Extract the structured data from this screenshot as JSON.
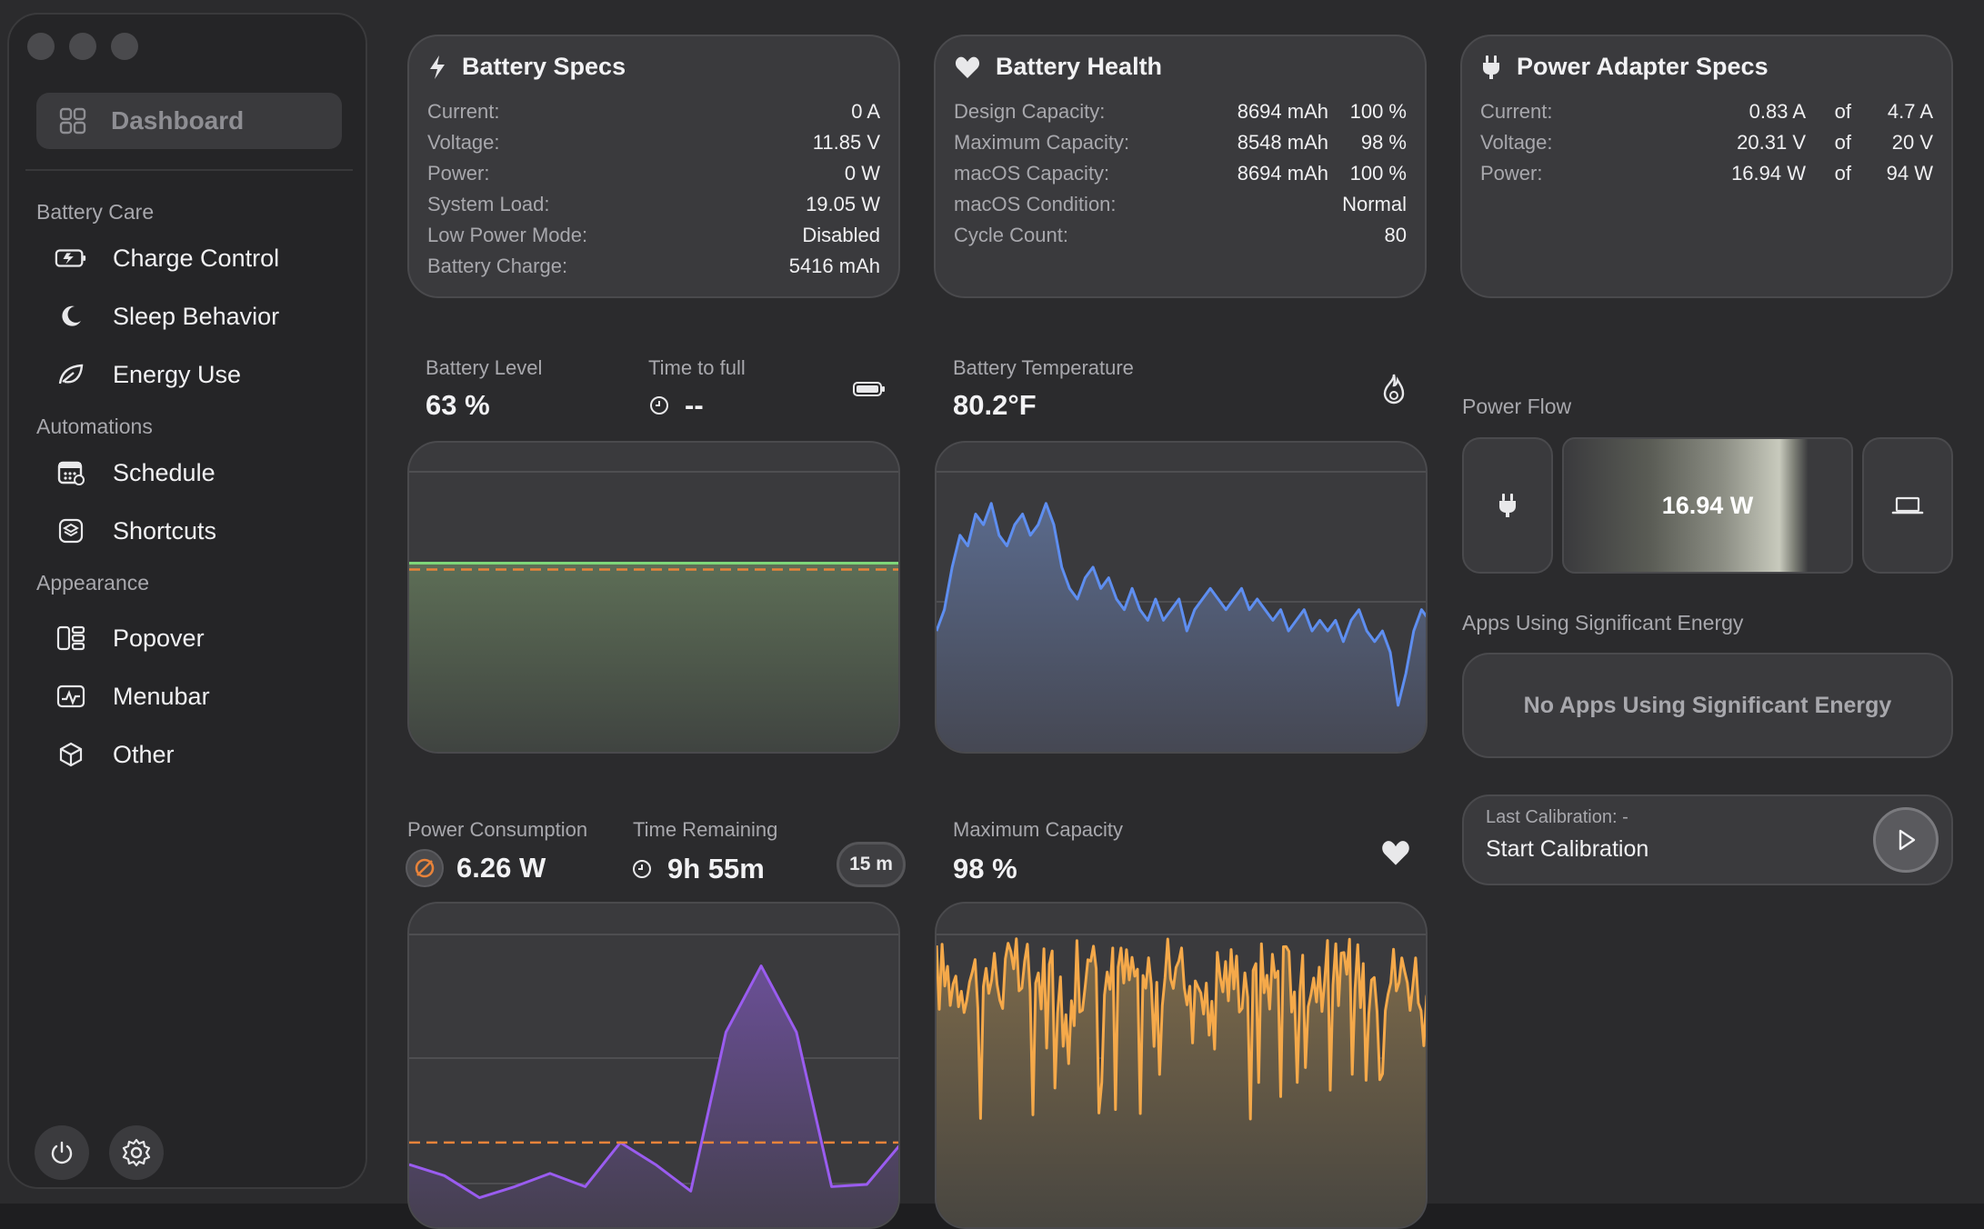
{
  "sidebar": {
    "dashboard_label": "Dashboard",
    "sections": [
      {
        "title": "Battery Care",
        "items": [
          {
            "label": "Charge Control",
            "icon": "battery-charge-icon"
          },
          {
            "label": "Sleep Behavior",
            "icon": "moon-icon"
          },
          {
            "label": "Energy Use",
            "icon": "leaf-icon"
          }
        ]
      },
      {
        "title": "Automations",
        "items": [
          {
            "label": "Schedule",
            "icon": "calendar-icon"
          },
          {
            "label": "Shortcuts",
            "icon": "shortcuts-icon"
          }
        ]
      },
      {
        "title": "Appearance",
        "items": [
          {
            "label": "Popover",
            "icon": "popover-icon"
          },
          {
            "label": "Menubar",
            "icon": "menubar-icon"
          },
          {
            "label": "Other",
            "icon": "cube-icon"
          }
        ]
      }
    ]
  },
  "battery_specs": {
    "title": "Battery Specs",
    "rows": [
      {
        "k": "Current:",
        "v": "0 A"
      },
      {
        "k": "Voltage:",
        "v": "11.85 V"
      },
      {
        "k": "Power:",
        "v": "0 W"
      },
      {
        "k": "System Load:",
        "v": "19.05 W"
      },
      {
        "k": "Low Power Mode:",
        "v": "Disabled"
      },
      {
        "k": "Battery Charge:",
        "v": "5416 mAh"
      }
    ]
  },
  "battery_health": {
    "title": "Battery Health",
    "rows": [
      {
        "k": "Design Capacity:",
        "v1": "8694 mAh",
        "v2": "100 %"
      },
      {
        "k": "Maximum Capacity:",
        "v1": "8548 mAh",
        "v2": "98 %"
      },
      {
        "k": "macOS Capacity:",
        "v1": "8694 mAh",
        "v2": "100 %"
      },
      {
        "k": "macOS Condition:",
        "v": "Normal"
      },
      {
        "k": "Cycle Count:",
        "v": "80"
      }
    ]
  },
  "adapter_specs": {
    "title": "Power Adapter Specs",
    "of": "of",
    "rows": [
      {
        "k": "Current:",
        "v1": "0.83 A",
        "v2": "4.7 A"
      },
      {
        "k": "Voltage:",
        "v1": "20.31 V",
        "v2": "20 V"
      },
      {
        "k": "Power:",
        "v1": "16.94 W",
        "v2": "94 W"
      }
    ]
  },
  "metrics": {
    "battery_level_label": "Battery Level",
    "battery_level_value": "63 %",
    "time_to_full_label": "Time to full",
    "time_to_full_value": "--",
    "battery_temp_label": "Battery Temperature",
    "battery_temp_value": "80.2°F",
    "power_consumption_label": "Power Consumption",
    "power_consumption_value": "6.26 W",
    "time_remaining_label": "Time Remaining",
    "time_remaining_value": "9h 55m",
    "interval_label": "15 m",
    "max_capacity_label": "Maximum Capacity",
    "max_capacity_value": "98 %"
  },
  "power_flow": {
    "label": "Power Flow",
    "value": "16.94 W"
  },
  "apps_energy": {
    "label": "Apps Using Significant Energy",
    "empty_text": "No Apps Using Significant Energy"
  },
  "calibration": {
    "last_label": "Last Calibration: -",
    "action_label": "Start Calibration"
  },
  "colors": {
    "accent_green": "#7ed67a",
    "accent_orange": "#e8833a",
    "accent_blue": "#5e8ef0",
    "accent_purple": "#9a5cf0",
    "accent_yellow": "#f5a94a"
  },
  "chart_data": [
    {
      "type": "line",
      "name": "battery-level",
      "values": [
        63,
        63,
        63,
        63,
        63,
        63,
        63,
        63,
        63,
        63
      ],
      "reference": 62,
      "ylim": [
        0,
        100
      ]
    },
    {
      "type": "area",
      "name": "battery-temperature",
      "values": [
        76,
        78,
        82,
        85,
        84,
        87,
        86,
        88,
        85,
        84,
        86,
        87,
        85,
        86,
        88,
        86,
        82,
        80,
        79,
        81,
        82,
        80,
        81,
        79,
        78,
        80,
        78,
        77,
        79,
        77,
        78,
        79,
        76,
        78,
        79,
        80,
        79,
        78,
        79,
        80,
        78,
        79,
        78,
        77,
        78,
        76,
        77,
        78,
        76,
        77,
        76,
        77,
        75,
        77,
        78,
        76,
        75,
        76,
        74,
        69,
        72,
        76,
        78,
        77
      ],
      "ylim": [
        66,
        92
      ]
    },
    {
      "type": "area",
      "name": "power-consumption",
      "values": [
        3,
        2.5,
        1.5,
        2,
        2.6,
        2,
        4,
        3,
        1.8,
        9,
        12,
        9,
        2,
        2.1,
        4
      ],
      "reference": 4,
      "ylim": [
        0,
        14
      ]
    },
    {
      "type": "area",
      "name": "maximum-capacity",
      "series_seed": 17,
      "points": 180,
      "ylim": [
        0,
        100
      ]
    }
  ]
}
